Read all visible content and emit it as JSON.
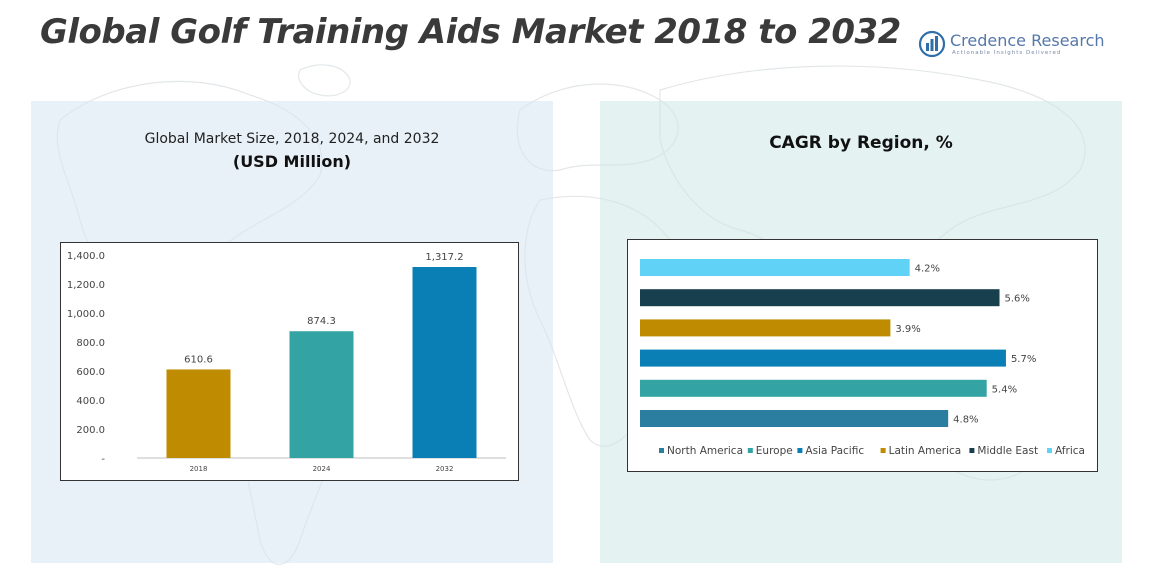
{
  "header": {
    "title": "Global Golf Training Aids Market 2018 to 2032",
    "logo_name": "Credence Research",
    "logo_tagline": "Actionable Insights Delivered"
  },
  "left_panel": {
    "subtitle": "Global Market Size, 2018, 2024, and 2032",
    "unit": "(USD Million)"
  },
  "right_panel": {
    "title": "CAGR by Region, %"
  },
  "colors": {
    "bar_2018": "#bf8b00",
    "bar_2024": "#34a3a3",
    "bar_2032": "#0a7fb5",
    "north_america": "#2c7ea0",
    "europe": "#34a3a3",
    "asia_pacific": "#0a7fb5",
    "latin_america": "#bf8b00",
    "middle_east": "#173f4d",
    "africa": "#5fd2f5"
  },
  "chart_data": [
    {
      "type": "bar",
      "categories": [
        "2018",
        "2024",
        "2032"
      ],
      "values": [
        610.6,
        874.3,
        1317.2
      ],
      "data_labels": [
        "610.6",
        "874.3",
        "1,317.2"
      ],
      "yticks": [
        "-",
        "200.0",
        "400.0",
        "600.0",
        "800.0",
        "1,000.0",
        "1,200.0",
        "1,400.0"
      ],
      "ylim": [
        0,
        1400
      ],
      "grid": false
    },
    {
      "type": "bar",
      "orientation": "horizontal",
      "categories": [
        "Africa",
        "Middle East",
        "Latin America",
        "Asia Pacific",
        "Europe",
        "North America"
      ],
      "values": [
        4.2,
        5.6,
        3.9,
        5.7,
        5.4,
        4.8
      ],
      "data_labels": [
        "4.2%",
        "5.6%",
        "3.9%",
        "5.7%",
        "5.4%",
        "4.8%"
      ],
      "legend": [
        "North America",
        "Europe",
        "Asia Pacific",
        "Latin America",
        "Middle East",
        "Africa"
      ],
      "legend_position": "bottom",
      "xlim": [
        0,
        6
      ],
      "grid": false
    }
  ]
}
